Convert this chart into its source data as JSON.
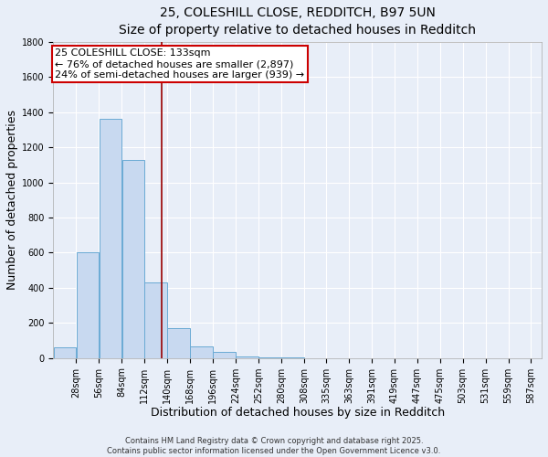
{
  "title_line1": "25, COLESHILL CLOSE, REDDITCH, B97 5UN",
  "title_line2": "Size of property relative to detached houses in Redditch",
  "xlabel": "Distribution of detached houses by size in Redditch",
  "ylabel": "Number of detached properties",
  "bar_color": "#c8d9f0",
  "bar_edge_color": "#6aaad4",
  "bin_starts": [
    0,
    28,
    56,
    84,
    112,
    140,
    168,
    196,
    224,
    252,
    280,
    308,
    336,
    364,
    392,
    420,
    448,
    476,
    504,
    532,
    560
  ],
  "bin_width": 28,
  "bar_heights": [
    60,
    600,
    1360,
    1130,
    430,
    170,
    65,
    35,
    10,
    2,
    1,
    0,
    0,
    0,
    0,
    0,
    0,
    0,
    0,
    0,
    0
  ],
  "xticklabels": [
    "28sqm",
    "56sqm",
    "84sqm",
    "112sqm",
    "140sqm",
    "168sqm",
    "196sqm",
    "224sqm",
    "252sqm",
    "280sqm",
    "308sqm",
    "335sqm",
    "363sqm",
    "391sqm",
    "419sqm",
    "447sqm",
    "475sqm",
    "503sqm",
    "531sqm",
    "559sqm",
    "587sqm"
  ],
  "xtick_positions": [
    28,
    56,
    84,
    112,
    140,
    168,
    196,
    224,
    252,
    280,
    308,
    335,
    363,
    391,
    419,
    447,
    475,
    503,
    531,
    559,
    587
  ],
  "ylim": [
    0,
    1800
  ],
  "yticks": [
    0,
    200,
    400,
    600,
    800,
    1000,
    1200,
    1400,
    1600,
    1800
  ],
  "xlim": [
    0,
    600
  ],
  "vline_x": 133,
  "vline_color": "#990000",
  "annotation_title": "25 COLESHILL CLOSE: 133sqm",
  "annotation_line1": "← 76% of detached houses are smaller (2,897)",
  "annotation_line2": "24% of semi-detached houses are larger (939) →",
  "annotation_box_facecolor": "#ffffff",
  "annotation_box_edgecolor": "#cc0000",
  "background_color": "#e8eef8",
  "plot_bg_color": "#e8eef8",
  "grid_color": "#ffffff",
  "footer_line1": "Contains HM Land Registry data © Crown copyright and database right 2025.",
  "footer_line2": "Contains public sector information licensed under the Open Government Licence v3.0.",
  "title_fontsize": 10,
  "subtitle_fontsize": 9,
  "axis_label_fontsize": 9,
  "tick_fontsize": 7,
  "annotation_fontsize": 8,
  "footer_fontsize": 6
}
